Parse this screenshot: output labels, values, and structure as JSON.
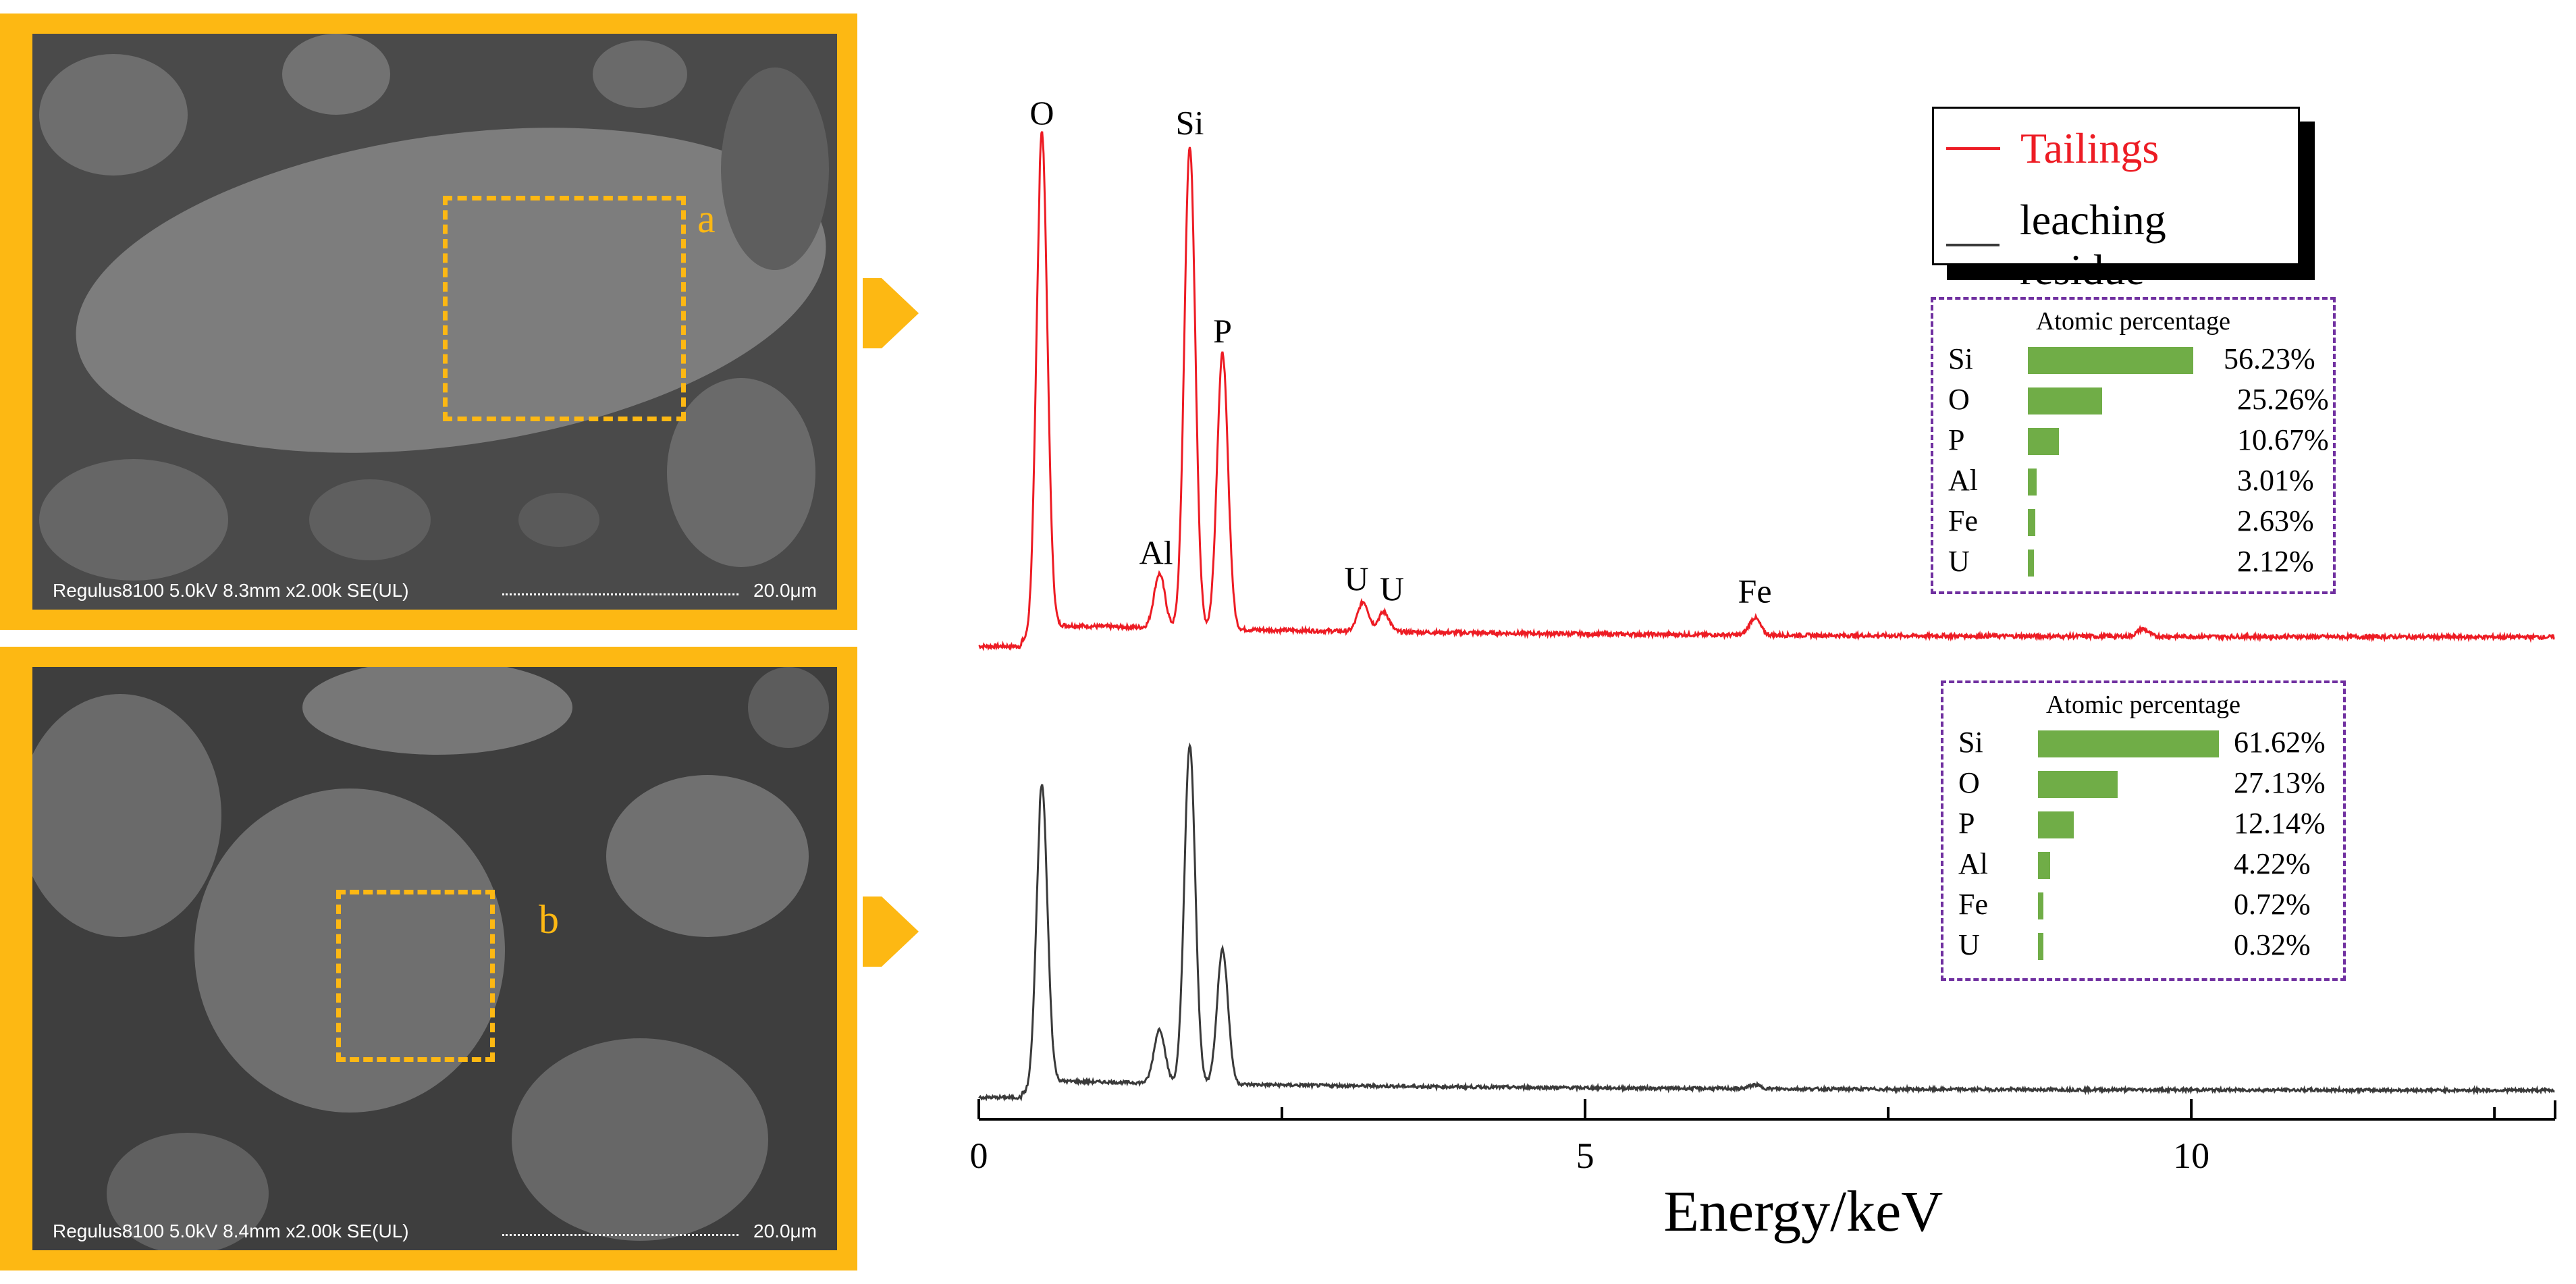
{
  "sem_panels": [
    {
      "info": "Regulus8100 5.0kV 8.3mm x2.00k SE(UL)",
      "scale": "20.0μm",
      "region_label": "a"
    },
    {
      "info": "Regulus8100 5.0kV 8.4mm x2.00k SE(UL)",
      "scale": "20.0μm",
      "region_label": "b"
    }
  ],
  "colors": {
    "accent": "#fdb813",
    "tailings": "#ed1c24",
    "residue": "#3a3a3a",
    "bar": "#70ad47",
    "box_border": "#7030a0"
  },
  "chart_data": {
    "type": "line",
    "xlabel": "Energy/keV",
    "xlim": [
      0,
      13
    ],
    "xticks": [
      0,
      5,
      10
    ],
    "grid": false,
    "legend_position": "top-right",
    "series": [
      {
        "name": "Tailings",
        "color": "#ed1c24",
        "peaks": [
          {
            "label": "O",
            "x": 0.52,
            "height": 1.0
          },
          {
            "label": "Al",
            "x": 1.49,
            "height": 0.11
          },
          {
            "label": "Si",
            "x": 1.74,
            "height": 0.98
          },
          {
            "label": "P",
            "x": 2.01,
            "height": 0.56
          },
          {
            "label": "U",
            "x": 3.17,
            "height": 0.06
          },
          {
            "label": "U",
            "x": 3.34,
            "height": 0.04
          },
          {
            "label": "Fe",
            "x": 6.4,
            "height": 0.035
          },
          {
            "label": "",
            "x": 9.6,
            "height": 0.015
          }
        ]
      },
      {
        "name": "leaching residue",
        "color": "#3a3a3a",
        "peaks": [
          {
            "label": "O",
            "x": 0.52,
            "height": 0.77
          },
          {
            "label": "Al",
            "x": 1.49,
            "height": 0.14
          },
          {
            "label": "Si",
            "x": 1.74,
            "height": 0.88
          },
          {
            "label": "P",
            "x": 2.01,
            "height": 0.35
          },
          {
            "label": "Fe",
            "x": 6.4,
            "height": 0.01
          }
        ]
      }
    ],
    "atomic_percentage": [
      {
        "title": "Atomic percentage",
        "values": [
          {
            "element": "Si",
            "value": 56.23,
            "label": "56.23%"
          },
          {
            "element": "O",
            "value": 25.26,
            "label": "25.26%"
          },
          {
            "element": "P",
            "value": 10.67,
            "label": "10.67%"
          },
          {
            "element": "Al",
            "value": 3.01,
            "label": "3.01%"
          },
          {
            "element": "Fe",
            "value": 2.63,
            "label": "2.63%"
          },
          {
            "element": "U",
            "value": 2.12,
            "label": "2.12%"
          }
        ]
      },
      {
        "title": "Atomic percentage",
        "values": [
          {
            "element": "Si",
            "value": 61.62,
            "label": "61.62%"
          },
          {
            "element": "O",
            "value": 27.13,
            "label": "27.13%"
          },
          {
            "element": "P",
            "value": 12.14,
            "label": "12.14%"
          },
          {
            "element": "Al",
            "value": 4.22,
            "label": "4.22%"
          },
          {
            "element": "Fe",
            "value": 0.72,
            "label": "0.72%"
          },
          {
            "element": "U",
            "value": 0.32,
            "label": "0.32%"
          }
        ]
      }
    ]
  }
}
